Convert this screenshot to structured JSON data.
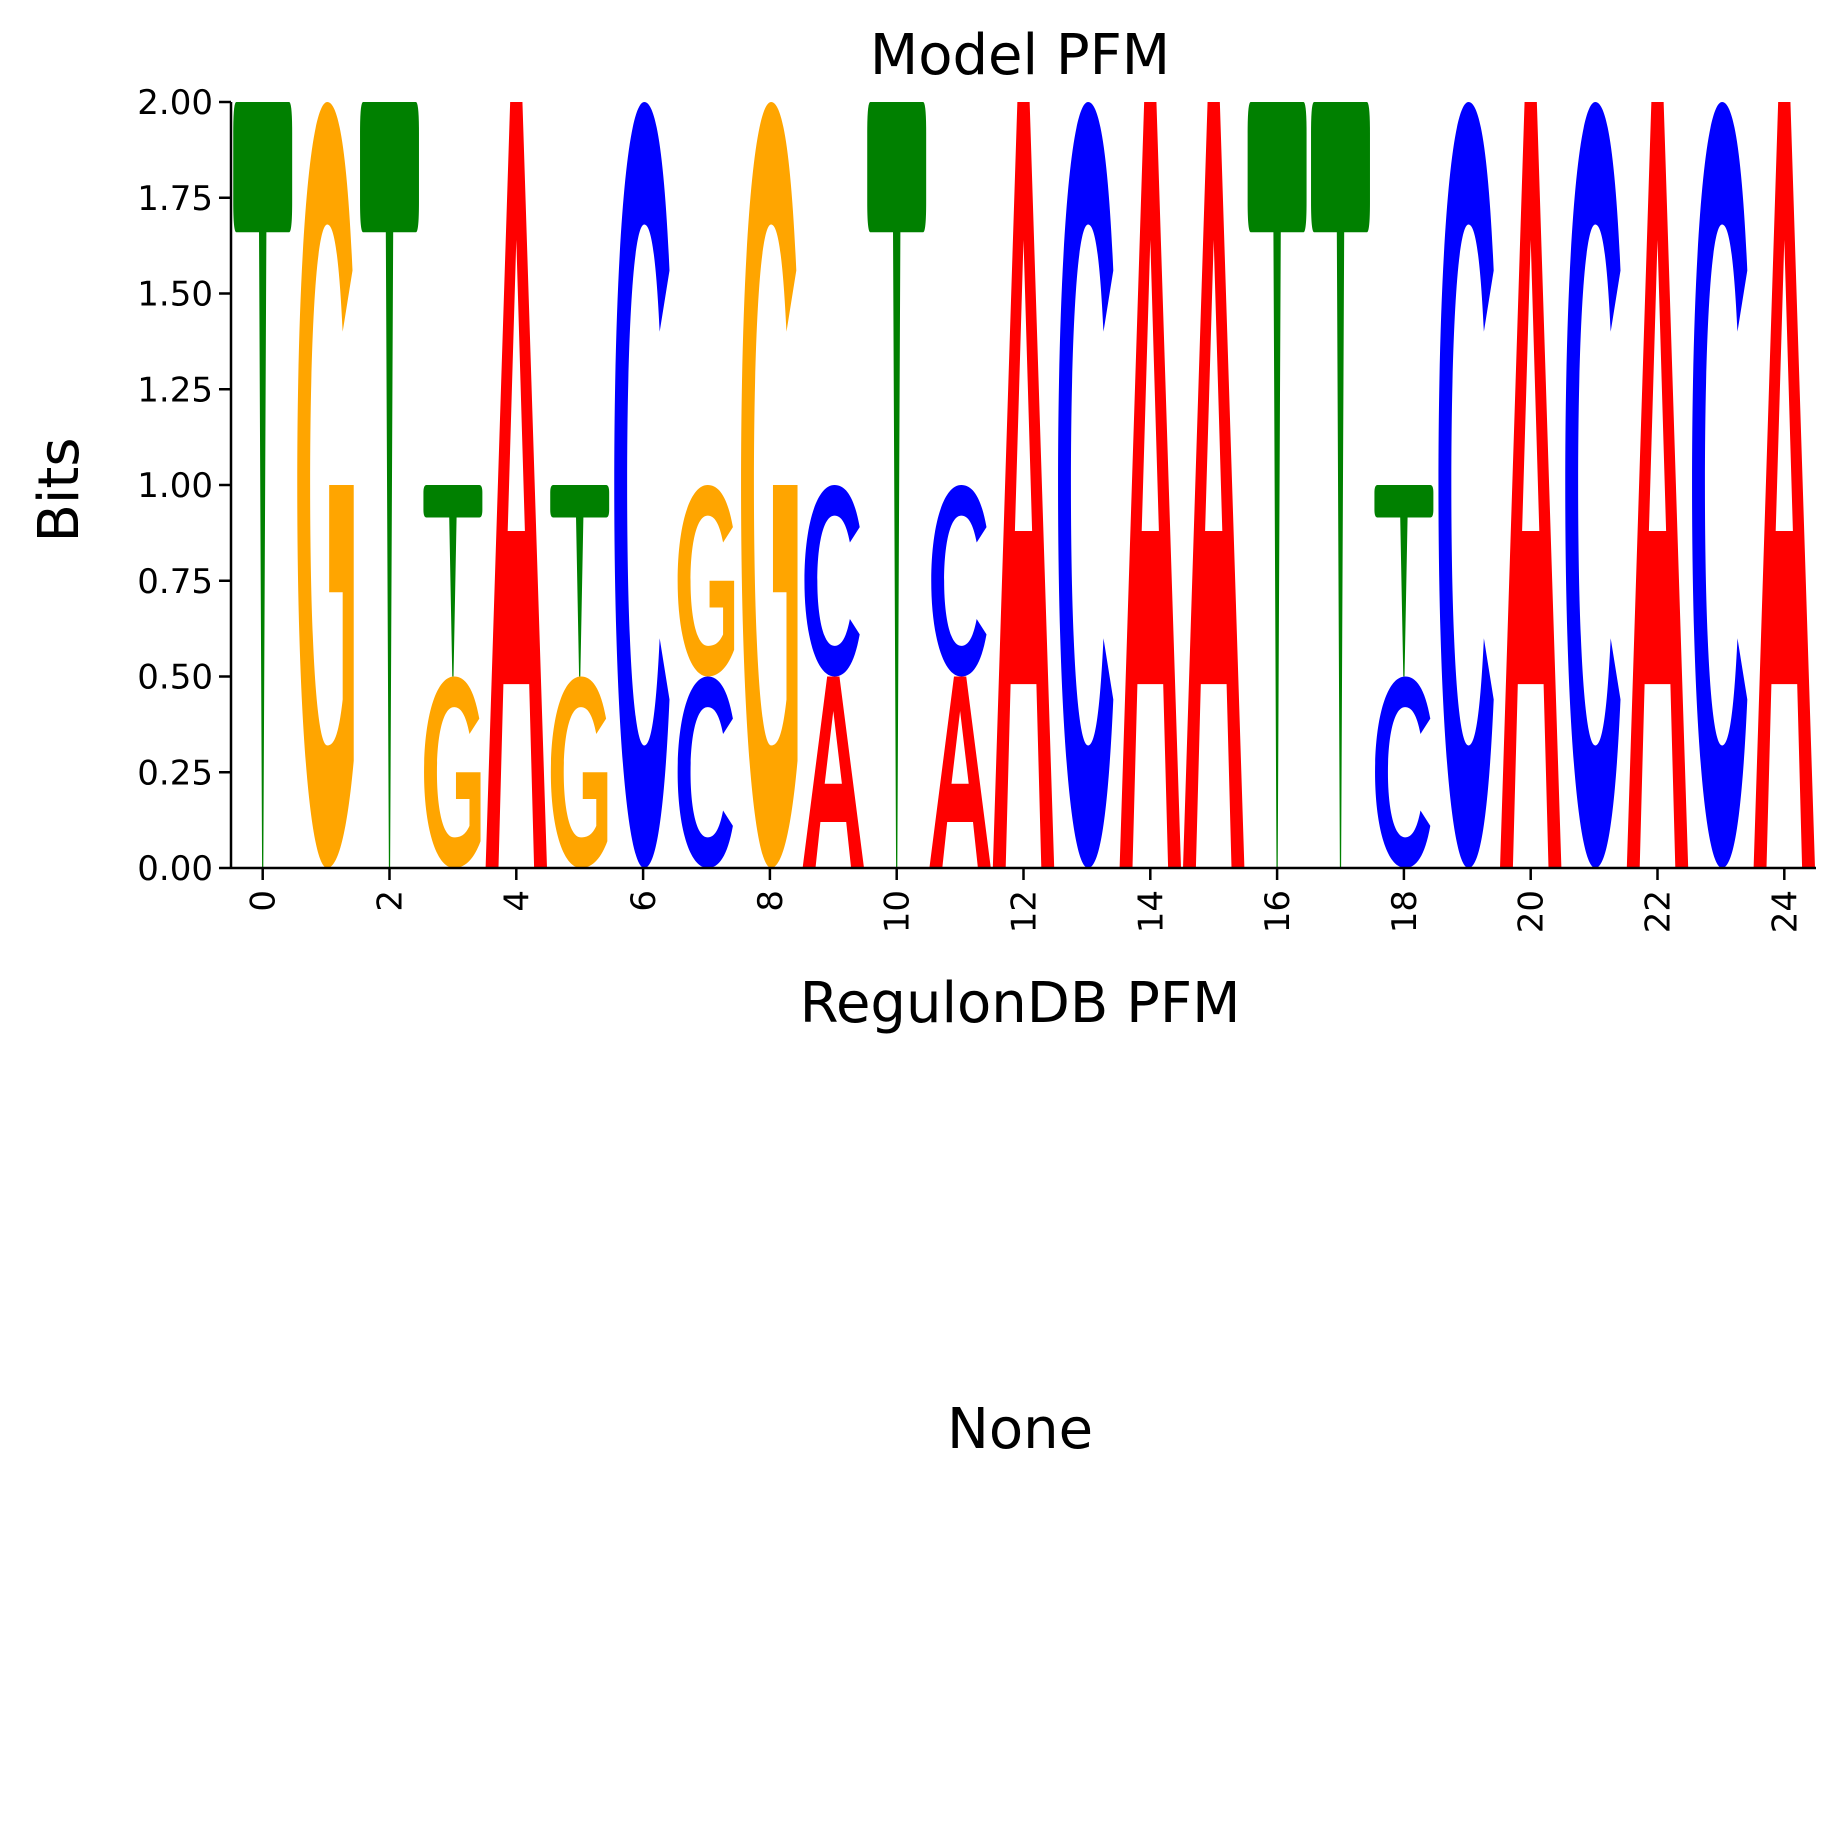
{
  "chart_data": [
    {
      "type": "sequence-logo",
      "title": "Model PFM",
      "xlabel": "RegulonDB PFM",
      "ylabel": "Bits",
      "ylim": [
        0,
        2
      ],
      "xlim": [
        -0.5,
        24.5
      ],
      "yticks": [
        "0.00",
        "0.25",
        "0.50",
        "0.75",
        "1.00",
        "1.25",
        "1.50",
        "1.75",
        "2.00"
      ],
      "xticks": [
        "0",
        "2",
        "4",
        "6",
        "8",
        "10",
        "12",
        "14",
        "16",
        "18",
        "20",
        "22",
        "24"
      ],
      "letter_colors": {
        "A": "#ff0000",
        "C": "#0000ff",
        "G": "#ffa500",
        "T": "#008000"
      },
      "positions": [
        [
          {
            "letter": "T",
            "bits": 2.0
          }
        ],
        [
          {
            "letter": "G",
            "bits": 2.0
          }
        ],
        [
          {
            "letter": "T",
            "bits": 2.0
          }
        ],
        [
          {
            "letter": "G",
            "bits": 0.5
          },
          {
            "letter": "T",
            "bits": 0.5
          }
        ],
        [
          {
            "letter": "A",
            "bits": 2.0
          }
        ],
        [
          {
            "letter": "G",
            "bits": 0.5
          },
          {
            "letter": "T",
            "bits": 0.5
          }
        ],
        [
          {
            "letter": "C",
            "bits": 2.0
          }
        ],
        [
          {
            "letter": "C",
            "bits": 0.5
          },
          {
            "letter": "G",
            "bits": 0.5
          }
        ],
        [
          {
            "letter": "G",
            "bits": 2.0
          }
        ],
        [
          {
            "letter": "A",
            "bits": 0.5
          },
          {
            "letter": "C",
            "bits": 0.5
          }
        ],
        [
          {
            "letter": "T",
            "bits": 2.0
          }
        ],
        [
          {
            "letter": "A",
            "bits": 0.5
          },
          {
            "letter": "C",
            "bits": 0.5
          }
        ],
        [
          {
            "letter": "A",
            "bits": 2.0
          }
        ],
        [
          {
            "letter": "C",
            "bits": 2.0
          }
        ],
        [
          {
            "letter": "A",
            "bits": 2.0
          }
        ],
        [
          {
            "letter": "A",
            "bits": 2.0
          }
        ],
        [
          {
            "letter": "T",
            "bits": 2.0
          }
        ],
        [
          {
            "letter": "T",
            "bits": 2.0
          }
        ],
        [
          {
            "letter": "C",
            "bits": 0.5
          },
          {
            "letter": "T",
            "bits": 0.5
          }
        ],
        [
          {
            "letter": "C",
            "bits": 2.0
          }
        ],
        [
          {
            "letter": "A",
            "bits": 2.0
          }
        ],
        [
          {
            "letter": "C",
            "bits": 2.0
          }
        ],
        [
          {
            "letter": "A",
            "bits": 2.0
          }
        ],
        [
          {
            "letter": "C",
            "bits": 2.0
          }
        ],
        [
          {
            "letter": "A",
            "bits": 2.0
          }
        ]
      ]
    },
    {
      "type": "empty",
      "title": "None"
    }
  ]
}
